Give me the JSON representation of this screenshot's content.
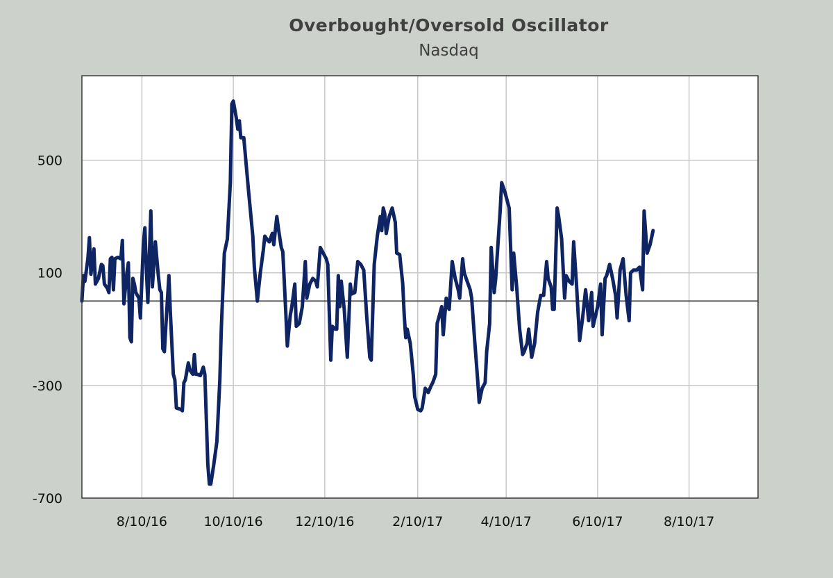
{
  "chart_data": {
    "type": "line",
    "title": "Overbought/Oversold  Oscillator",
    "subtitle": "Nasdaq",
    "xlabel": "",
    "ylabel": "",
    "x_ticks": [
      "8/10/16",
      "10/10/16",
      "12/10/16",
      "2/10/17",
      "4/10/17",
      "6/10/17",
      "8/10/17"
    ],
    "y_ticks": [
      500,
      100,
      -300,
      -700
    ],
    "y_tick_labels": [
      "500",
      "100",
      "-300",
      "-700"
    ],
    "ylim": [
      -700,
      800
    ],
    "xlim": [
      "7/1/16",
      "9/25/17"
    ],
    "zero_line": 0,
    "grid": true,
    "series": [
      {
        "name": "Nasdaq",
        "color": "#0f2463",
        "points": [
          [
            "2016-07-01",
            0
          ],
          [
            "2016-07-02",
            90
          ],
          [
            "2016-07-03",
            70
          ],
          [
            "2016-07-05",
            150
          ],
          [
            "2016-07-06",
            225
          ],
          [
            "2016-07-07",
            95
          ],
          [
            "2016-07-09",
            185
          ],
          [
            "2016-07-10",
            60
          ],
          [
            "2016-07-12",
            80
          ],
          [
            "2016-07-14",
            130
          ],
          [
            "2016-07-15",
            125
          ],
          [
            "2016-07-16",
            60
          ],
          [
            "2016-07-18",
            45
          ],
          [
            "2016-07-19",
            30
          ],
          [
            "2016-07-20",
            150
          ],
          [
            "2016-07-21",
            155
          ],
          [
            "2016-07-22",
            40
          ],
          [
            "2016-07-23",
            150
          ],
          [
            "2016-07-25",
            155
          ],
          [
            "2016-07-27",
            150
          ],
          [
            "2016-07-28",
            215
          ],
          [
            "2016-07-29",
            -10
          ],
          [
            "2016-07-31",
            100
          ],
          [
            "2016-08-01",
            135
          ],
          [
            "2016-08-02",
            -130
          ],
          [
            "2016-08-03",
            -145
          ],
          [
            "2016-08-04",
            80
          ],
          [
            "2016-08-05",
            60
          ],
          [
            "2016-08-06",
            30
          ],
          [
            "2016-08-08",
            10
          ],
          [
            "2016-08-09",
            -60
          ],
          [
            "2016-08-11",
            200
          ],
          [
            "2016-08-12",
            260
          ],
          [
            "2016-08-13",
            110
          ],
          [
            "2016-08-14",
            -5
          ],
          [
            "2016-08-16",
            320
          ],
          [
            "2016-08-17",
            50
          ],
          [
            "2016-08-19",
            210
          ],
          [
            "2016-08-21",
            90
          ],
          [
            "2016-08-22",
            40
          ],
          [
            "2016-08-23",
            30
          ],
          [
            "2016-08-24",
            -170
          ],
          [
            "2016-08-25",
            -180
          ],
          [
            "2016-08-26",
            -90
          ],
          [
            "2016-08-27",
            0
          ],
          [
            "2016-08-28",
            90
          ],
          [
            "2016-08-29",
            -40
          ],
          [
            "2016-08-31",
            -260
          ],
          [
            "2016-09-01",
            -280
          ],
          [
            "2016-09-02",
            -380
          ],
          [
            "2016-09-05",
            -385
          ],
          [
            "2016-09-06",
            -390
          ],
          [
            "2016-09-07",
            -290
          ],
          [
            "2016-09-08",
            -280
          ],
          [
            "2016-09-10",
            -220
          ],
          [
            "2016-09-11",
            -245
          ],
          [
            "2016-09-13",
            -260
          ],
          [
            "2016-09-14",
            -190
          ],
          [
            "2016-09-15",
            -260
          ],
          [
            "2016-09-16",
            -260
          ],
          [
            "2016-09-18",
            -265
          ],
          [
            "2016-09-20",
            -235
          ],
          [
            "2016-09-21",
            -260
          ],
          [
            "2016-09-23",
            -580
          ],
          [
            "2016-09-24",
            -650
          ],
          [
            "2016-09-25",
            -650
          ],
          [
            "2016-09-27",
            -580
          ],
          [
            "2016-09-29",
            -500
          ],
          [
            "2016-10-01",
            -280
          ],
          [
            "2016-10-02",
            -100
          ],
          [
            "2016-10-04",
            170
          ],
          [
            "2016-10-06",
            220
          ],
          [
            "2016-10-08",
            420
          ],
          [
            "2016-10-09",
            700
          ],
          [
            "2016-10-10",
            710
          ],
          [
            "2016-10-12",
            650
          ],
          [
            "2016-10-13",
            610
          ],
          [
            "2016-10-14",
            640
          ],
          [
            "2016-10-15",
            580
          ],
          [
            "2016-10-17",
            580
          ],
          [
            "2016-10-20",
            400
          ],
          [
            "2016-10-23",
            230
          ],
          [
            "2016-10-24",
            120
          ],
          [
            "2016-10-26",
            0
          ],
          [
            "2016-10-28",
            100
          ],
          [
            "2016-10-30",
            180
          ],
          [
            "2016-10-31",
            230
          ],
          [
            "2016-11-02",
            215
          ],
          [
            "2016-11-03",
            210
          ],
          [
            "2016-11-05",
            240
          ],
          [
            "2016-11-06",
            200
          ],
          [
            "2016-11-08",
            300
          ],
          [
            "2016-11-09",
            260
          ],
          [
            "2016-11-11",
            190
          ],
          [
            "2016-11-12",
            175
          ],
          [
            "2016-11-14",
            -40
          ],
          [
            "2016-11-15",
            -160
          ],
          [
            "2016-11-17",
            -50
          ],
          [
            "2016-11-18",
            -20
          ],
          [
            "2016-11-20",
            60
          ],
          [
            "2016-11-21",
            -90
          ],
          [
            "2016-11-23",
            -80
          ],
          [
            "2016-11-25",
            -20
          ],
          [
            "2016-11-27",
            140
          ],
          [
            "2016-11-28",
            10
          ],
          [
            "2016-11-30",
            60
          ],
          [
            "2016-12-02",
            80
          ],
          [
            "2016-12-04",
            70
          ],
          [
            "2016-12-05",
            50
          ],
          [
            "2016-12-07",
            190
          ],
          [
            "2016-12-09",
            170
          ],
          [
            "2016-12-11",
            150
          ],
          [
            "2016-12-12",
            130
          ],
          [
            "2016-12-14",
            -210
          ],
          [
            "2016-12-15",
            -90
          ],
          [
            "2016-12-17",
            -100
          ],
          [
            "2016-12-18",
            -100
          ],
          [
            "2016-12-19",
            90
          ],
          [
            "2016-12-20",
            -20
          ],
          [
            "2016-12-21",
            70
          ],
          [
            "2016-12-23",
            -30
          ],
          [
            "2016-12-25",
            -200
          ],
          [
            "2016-12-27",
            60
          ],
          [
            "2016-12-28",
            25
          ],
          [
            "2016-12-30",
            30
          ],
          [
            "2017-01-01",
            140
          ],
          [
            "2017-01-03",
            130
          ],
          [
            "2017-01-05",
            110
          ],
          [
            "2017-01-07",
            -55
          ],
          [
            "2017-01-09",
            -200
          ],
          [
            "2017-01-10",
            -210
          ],
          [
            "2017-01-12",
            130
          ],
          [
            "2017-01-14",
            230
          ],
          [
            "2017-01-16",
            300
          ],
          [
            "2017-01-17",
            250
          ],
          [
            "2017-01-18",
            330
          ],
          [
            "2017-01-19",
            310
          ],
          [
            "2017-01-20",
            240
          ],
          [
            "2017-01-22",
            300
          ],
          [
            "2017-01-24",
            330
          ],
          [
            "2017-01-26",
            280
          ],
          [
            "2017-01-27",
            170
          ],
          [
            "2017-01-29",
            165
          ],
          [
            "2017-01-31",
            60
          ],
          [
            "2017-02-01",
            -50
          ],
          [
            "2017-02-02",
            -130
          ],
          [
            "2017-02-03",
            -100
          ],
          [
            "2017-02-05",
            -150
          ],
          [
            "2017-02-07",
            -260
          ],
          [
            "2017-02-08",
            -340
          ],
          [
            "2017-02-10",
            -385
          ],
          [
            "2017-02-12",
            -390
          ],
          [
            "2017-02-13",
            -380
          ],
          [
            "2017-02-15",
            -310
          ],
          [
            "2017-02-17",
            -325
          ],
          [
            "2017-02-19",
            -300
          ],
          [
            "2017-02-20",
            -290
          ],
          [
            "2017-02-22",
            -260
          ],
          [
            "2017-02-23",
            -80
          ],
          [
            "2017-02-25",
            -40
          ],
          [
            "2017-02-26",
            -20
          ],
          [
            "2017-02-27",
            -120
          ],
          [
            "2017-03-01",
            10
          ],
          [
            "2017-03-02",
            -20
          ],
          [
            "2017-03-03",
            -30
          ],
          [
            "2017-03-05",
            140
          ],
          [
            "2017-03-07",
            80
          ],
          [
            "2017-03-09",
            40
          ],
          [
            "2017-03-10",
            10
          ],
          [
            "2017-03-12",
            150
          ],
          [
            "2017-03-13",
            100
          ],
          [
            "2017-03-15",
            70
          ],
          [
            "2017-03-17",
            40
          ],
          [
            "2017-03-18",
            10
          ],
          [
            "2017-03-20",
            -140
          ],
          [
            "2017-03-22",
            -280
          ],
          [
            "2017-03-23",
            -360
          ],
          [
            "2017-03-25",
            -310
          ],
          [
            "2017-03-27",
            -290
          ],
          [
            "2017-03-28",
            -180
          ],
          [
            "2017-03-30",
            -80
          ],
          [
            "2017-03-31",
            190
          ],
          [
            "2017-04-02",
            30
          ],
          [
            "2017-04-03",
            80
          ],
          [
            "2017-04-06",
            320
          ],
          [
            "2017-04-07",
            420
          ],
          [
            "2017-04-09",
            390
          ],
          [
            "2017-04-12",
            330
          ],
          [
            "2017-04-14",
            40
          ],
          [
            "2017-04-15",
            170
          ],
          [
            "2017-04-17",
            50
          ],
          [
            "2017-04-19",
            -100
          ],
          [
            "2017-04-21",
            -190
          ],
          [
            "2017-04-22",
            -180
          ],
          [
            "2017-04-24",
            -150
          ],
          [
            "2017-04-25",
            -100
          ],
          [
            "2017-04-27",
            -200
          ],
          [
            "2017-04-29",
            -150
          ],
          [
            "2017-05-01",
            -40
          ],
          [
            "2017-05-03",
            20
          ],
          [
            "2017-05-05",
            20
          ],
          [
            "2017-05-07",
            140
          ],
          [
            "2017-05-08",
            80
          ],
          [
            "2017-05-10",
            50
          ],
          [
            "2017-05-11",
            -30
          ],
          [
            "2017-05-12",
            -30
          ],
          [
            "2017-05-14",
            330
          ],
          [
            "2017-05-15",
            300
          ],
          [
            "2017-05-17",
            220
          ],
          [
            "2017-05-19",
            10
          ],
          [
            "2017-05-20",
            90
          ],
          [
            "2017-05-22",
            70
          ],
          [
            "2017-05-24",
            60
          ],
          [
            "2017-05-25",
            210
          ],
          [
            "2017-05-27",
            50
          ],
          [
            "2017-05-29",
            -140
          ],
          [
            "2017-05-31",
            -60
          ],
          [
            "2017-06-02",
            40
          ],
          [
            "2017-06-04",
            -70
          ],
          [
            "2017-06-06",
            30
          ],
          [
            "2017-06-07",
            -90
          ],
          [
            "2017-06-10",
            -20
          ],
          [
            "2017-06-12",
            60
          ],
          [
            "2017-06-13",
            -120
          ],
          [
            "2017-06-15",
            80
          ],
          [
            "2017-06-16",
            90
          ],
          [
            "2017-06-18",
            130
          ],
          [
            "2017-06-20",
            80
          ],
          [
            "2017-06-22",
            20
          ],
          [
            "2017-06-23",
            -60
          ],
          [
            "2017-06-25",
            110
          ],
          [
            "2017-06-27",
            150
          ],
          [
            "2017-06-29",
            20
          ],
          [
            "2017-07-01",
            -70
          ],
          [
            "2017-07-02",
            100
          ],
          [
            "2017-07-04",
            110
          ],
          [
            "2017-07-06",
            110
          ],
          [
            "2017-07-08",
            120
          ],
          [
            "2017-07-10",
            40
          ],
          [
            "2017-07-11",
            320
          ],
          [
            "2017-07-13",
            170
          ],
          [
            "2017-07-15",
            200
          ],
          [
            "2017-07-17",
            250
          ]
        ]
      }
    ]
  }
}
